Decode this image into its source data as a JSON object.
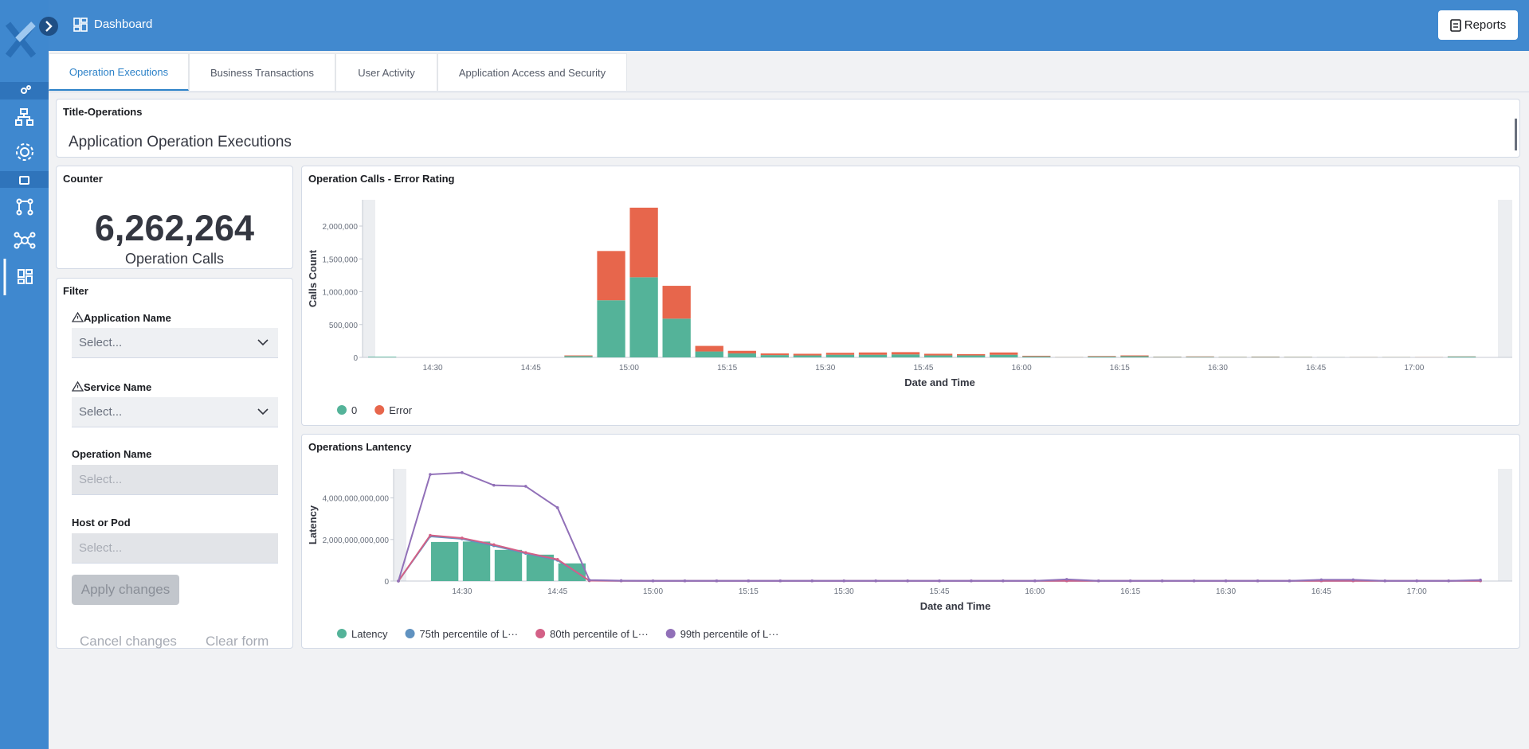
{
  "header": {
    "title": "Dashboard",
    "button": "Reports"
  },
  "tabs": [
    "Operation Executions",
    "Business Transactions",
    "User Activity",
    "Application Access and Security"
  ],
  "title_panel": {
    "heading": "Title-Operations",
    "text": "Application Operation Executions"
  },
  "counter": {
    "heading": "Counter",
    "value": "6,262,264",
    "label": "Operation Calls"
  },
  "filter": {
    "heading": "Filter",
    "fields": [
      {
        "label": "Application Name",
        "placeholder": "Select..."
      },
      {
        "label": "Service Name",
        "placeholder": "Select..."
      },
      {
        "label": "Operation Name",
        "placeholder": "Select..."
      },
      {
        "label": "Host or Pod",
        "placeholder": "Select..."
      }
    ],
    "apply": "Apply changes",
    "cancel": "Cancel changes",
    "clear": "Clear form"
  },
  "chart_data": [
    {
      "type": "bar",
      "stacked": true,
      "title": "Operation Calls - Error Rating",
      "x_label": "Date and Time",
      "y_label": "Calls Count",
      "categories": [
        null,
        null,
        "14:30",
        null,
        null,
        "14:45",
        null,
        null,
        "15:00",
        null,
        null,
        "15:15",
        null,
        null,
        "15:30",
        null,
        null,
        "15:45",
        null,
        null,
        "16:00",
        null,
        null,
        "16:15",
        null,
        null,
        "16:30",
        null,
        null,
        "16:45",
        null,
        null,
        "17:00",
        null,
        null
      ],
      "series": [
        {
          "name": "0",
          "color": "#54b399",
          "values": [
            10000,
            0,
            0,
            0,
            0,
            0,
            20000,
            870000,
            1220000,
            590000,
            90000,
            60000,
            35000,
            30000,
            40000,
            40000,
            45000,
            30000,
            30000,
            40000,
            15000,
            3000,
            12000,
            18000,
            6000,
            9000,
            5000,
            7000,
            5000,
            2000,
            3000,
            4000,
            2000,
            12000,
            0
          ]
        },
        {
          "name": "Error",
          "color": "#e7664c",
          "values": [
            0,
            0,
            0,
            0,
            0,
            0,
            10000,
            750000,
            1060000,
            500000,
            85000,
            40000,
            25000,
            25000,
            30000,
            35000,
            35000,
            25000,
            20000,
            35000,
            10000,
            2000,
            8000,
            12000,
            4000,
            6000,
            3000,
            5000,
            3000,
            1000,
            2000,
            2000,
            2000,
            3000,
            0
          ]
        }
      ],
      "ylim": [
        0,
        2400000
      ],
      "yticks": [
        0,
        {
          "value": 500000,
          "label": "500,000"
        },
        {
          "value": 1000000,
          "label": "1,000,000"
        },
        {
          "value": 1500000,
          "label": "1,500,000"
        },
        {
          "value": 2000000,
          "label": "2,000,000"
        }
      ]
    },
    {
      "type": "combo",
      "title": "Operations Lantency",
      "x_label": "Date and Time",
      "y_label": "Latency",
      "categories": [
        null,
        null,
        "14:30",
        null,
        null,
        "14:45",
        null,
        null,
        "15:00",
        null,
        null,
        "15:15",
        null,
        null,
        "15:30",
        null,
        null,
        "15:45",
        null,
        null,
        "16:00",
        null,
        null,
        "16:15",
        null,
        null,
        "16:30",
        null,
        null,
        "16:45",
        null,
        null,
        "17:00",
        null,
        null
      ],
      "series": [
        {
          "name": "Latency",
          "type": "bar",
          "color": "#54b399",
          "values": [
            0,
            1880000000000,
            1900000000000,
            1500000000000,
            1270000000000,
            850000000000,
            0,
            0,
            0,
            0,
            0,
            0,
            0,
            0,
            0,
            0,
            0,
            0,
            0,
            0,
            0,
            0,
            0,
            0,
            0,
            0,
            0,
            0,
            0,
            0,
            0,
            0,
            0,
            0,
            0
          ]
        },
        {
          "name": "75th percentile of L···",
          "type": "line",
          "color": "#6092c0",
          "values": [
            0,
            2150000000000,
            2030000000000,
            1700000000000,
            1330000000000,
            1000000000000,
            20000000000,
            10000000000,
            10000000000,
            10000000000,
            10000000000,
            10000000000,
            10000000000,
            10000000000,
            10000000000,
            10000000000,
            10000000000,
            10000000000,
            10000000000,
            10000000000,
            10000000000,
            10000000000,
            10000000000,
            10000000000,
            10000000000,
            10000000000,
            10000000000,
            10000000000,
            10000000000,
            10000000000,
            10000000000,
            10000000000,
            10000000000,
            10000000000,
            10000000000
          ]
        },
        {
          "name": "80th percentile of L···",
          "type": "line",
          "color": "#d36086",
          "values": [
            0,
            2200000000000,
            2070000000000,
            1750000000000,
            1370000000000,
            1040000000000,
            20000000000,
            10000000000,
            10000000000,
            10000000000,
            10000000000,
            10000000000,
            10000000000,
            10000000000,
            10000000000,
            10000000000,
            10000000000,
            10000000000,
            10000000000,
            10000000000,
            10000000000,
            10000000000,
            10000000000,
            10000000000,
            10000000000,
            10000000000,
            10000000000,
            10000000000,
            10000000000,
            10000000000,
            10000000000,
            10000000000,
            10000000000,
            10000000000,
            10000000000
          ]
        },
        {
          "name": "99th percentile of L···",
          "type": "line",
          "color": "#9170b8",
          "values": [
            0,
            5130000000000,
            5220000000000,
            4610000000000,
            4560000000000,
            3530000000000,
            50000000000,
            20000000000,
            10000000000,
            10000000000,
            10000000000,
            10000000000,
            10000000000,
            10000000000,
            10000000000,
            10000000000,
            10000000000,
            10000000000,
            10000000000,
            10000000000,
            10000000000,
            80000000000,
            10000000000,
            10000000000,
            10000000000,
            10000000000,
            10000000000,
            10000000000,
            10000000000,
            60000000000,
            60000000000,
            10000000000,
            10000000000,
            10000000000,
            50000000000
          ]
        }
      ],
      "ylim": [
        0,
        5400000000000
      ],
      "yticks": [
        0,
        {
          "value": 2000000000000,
          "label": "2,000,000,000,000"
        },
        {
          "value": 4000000000000,
          "label": "4,000,000,000,000"
        }
      ]
    }
  ]
}
